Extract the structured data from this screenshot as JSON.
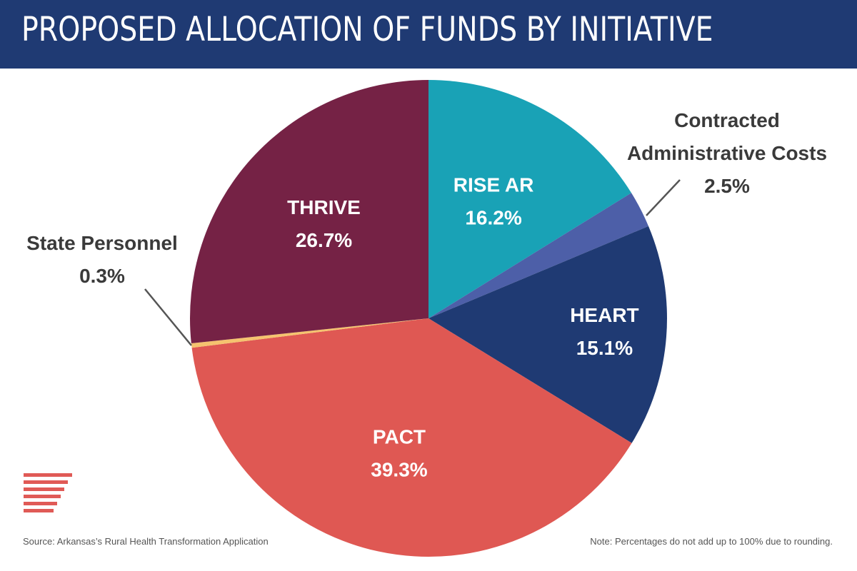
{
  "header": {
    "title": "PROPOSED ALLOCATION OF FUNDS BY INITIATIVE"
  },
  "chart_data": {
    "type": "pie",
    "title": "PROPOSED ALLOCATION OF FUNDS BY INITIATIVE",
    "start_angle_deg": 0,
    "direction": "clockwise",
    "slices": [
      {
        "id": "rise-ar",
        "label": "RISE AR",
        "lines": [
          "RISE AR"
        ],
        "value": 16.2,
        "value_label": "16.2%",
        "color": "#19a2b6",
        "label_position": "inside"
      },
      {
        "id": "contracted-admin",
        "label": "Contracted Administrative Costs",
        "lines": [
          "Contracted",
          "Administrative Costs"
        ],
        "value": 2.5,
        "value_label": "2.5%",
        "color": "#4d5fa8",
        "label_position": "outside"
      },
      {
        "id": "heart",
        "label": "HEART",
        "lines": [
          "HEART"
        ],
        "value": 15.1,
        "value_label": "15.1%",
        "color": "#1f3a73",
        "label_position": "inside"
      },
      {
        "id": "pact",
        "label": "PACT",
        "lines": [
          "PACT"
        ],
        "value": 39.3,
        "value_label": "39.3%",
        "color": "#df5853",
        "label_position": "inside"
      },
      {
        "id": "state-personnel",
        "label": "State Personnel",
        "lines": [
          "State Personnel"
        ],
        "value": 0.3,
        "value_label": "0.3%",
        "color": "#f5c36f",
        "label_position": "outside"
      },
      {
        "id": "thrive",
        "label": "THRIVE",
        "lines": [
          "THRIVE"
        ],
        "value": 26.7,
        "value_label": "26.7%",
        "color": "#752245",
        "label_position": "inside"
      }
    ],
    "note": "Percentages do not add up to 100% due to rounding."
  },
  "footer": {
    "source": "Source: Arkansas’s Rural Health Transformation Application",
    "note": "Note: Percentages do not add up to 100% due to rounding."
  },
  "colors": {
    "header_bg": "#1f3a73",
    "logo": "#e05a56",
    "label_dark": "#3a3a3a"
  }
}
